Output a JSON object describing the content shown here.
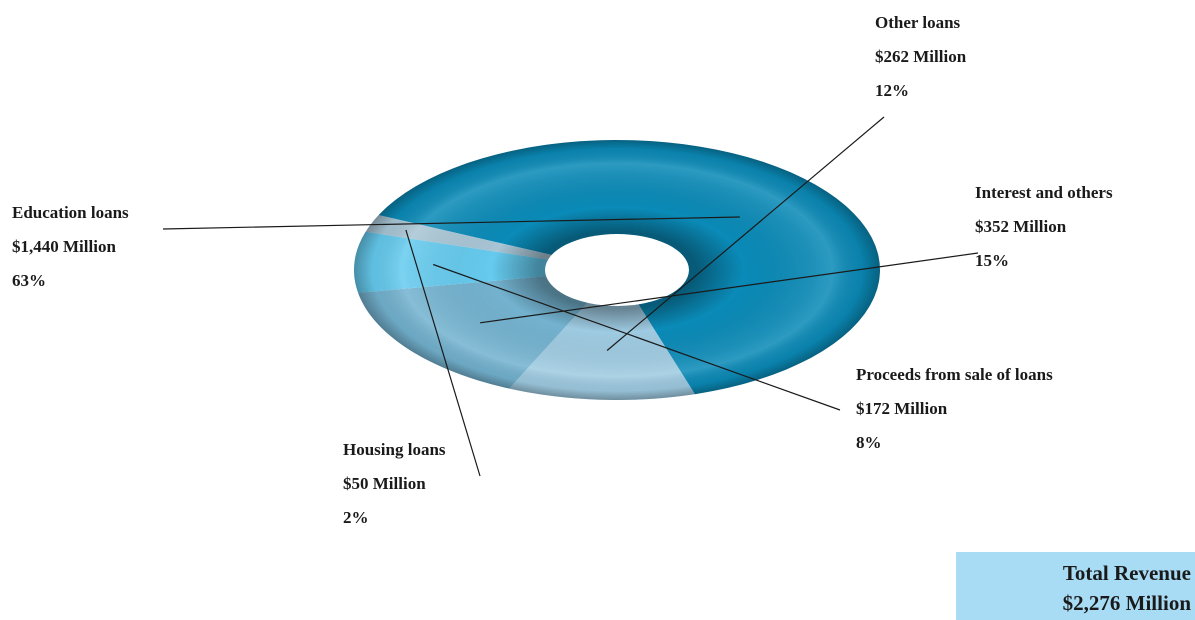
{
  "chart_data": {
    "type": "pie",
    "style": "donut-3d",
    "slices": [
      {
        "category": "Education loans",
        "amount": "$1,440 Million",
        "percent_label": "63%",
        "value": 1440,
        "color": "#0b8bb8"
      },
      {
        "category": "Other loans",
        "amount": "$262 Million",
        "percent_label": "12%",
        "value": 262,
        "color": "#9fcbe2"
      },
      {
        "category": "Interest and others",
        "amount": "$352 Million",
        "percent_label": "15%",
        "value": 352,
        "color": "#74b3d0"
      },
      {
        "category": "Proceeds from sale of loans",
        "amount": "$172 Million",
        "percent_label": "8%",
        "value": 172,
        "color": "#66cbef"
      },
      {
        "category": "Housing loans",
        "amount": "$50 Million",
        "percent_label": "2%",
        "value": 50,
        "color": "#a9c6d6"
      }
    ],
    "total": {
      "label": "Total Revenue",
      "amount": "$2,276 Million",
      "value": 2276,
      "box_color": "#a8dcf5"
    }
  }
}
